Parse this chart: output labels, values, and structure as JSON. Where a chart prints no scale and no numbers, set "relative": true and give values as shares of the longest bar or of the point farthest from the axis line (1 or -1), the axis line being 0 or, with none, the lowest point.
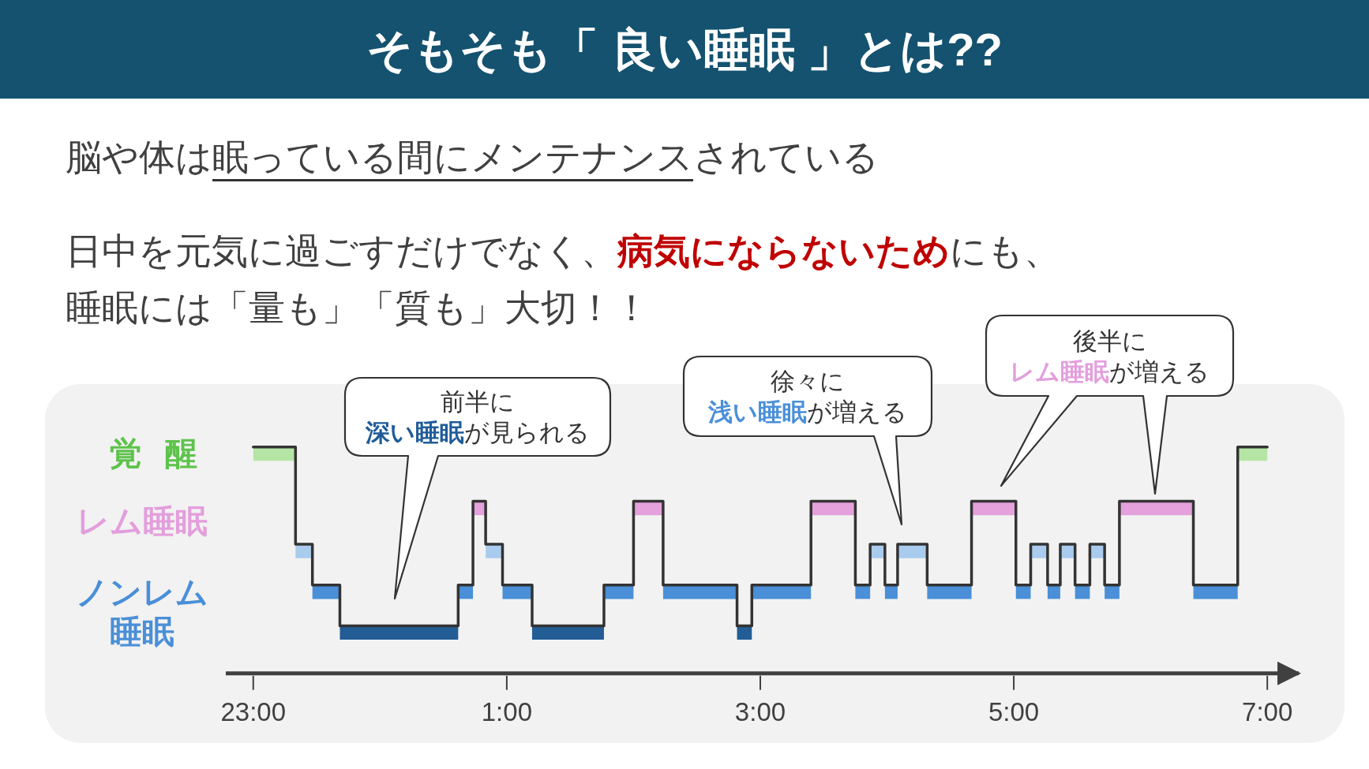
{
  "chart_data": {
    "type": "step",
    "relative": true,
    "title": "そもそも「 良い睡眠 」とは??",
    "subtitle": "脳や体は眠っている間にメンテナンスされている",
    "annotations": [
      "日中を元気に過ごすだけでなく、**病気にならないため**にも、睡眠には「量も」「質も」大切！！",
      "覚醒",
      "レム睡眠",
      "ノンレム睡眠",
      "前半に**深い睡眠**が見られる",
      "徐々に**浅い睡眠**が増える",
      "後半に**レム睡眠**が増える"
    ],
    "series": [
      {
        "type": "line",
        "color": "#b5e5a4",
        "x": [
          "2000-01-01T23:00",
          "2000-01-01T23:20"
        ],
        "values": [
          0.97,
          0.97
        ]
      },
      {
        "type": "line",
        "color": "#a9cbee",
        "x": [
          "2000-01-01T23:20",
          "2000-01-01T23:28"
        ],
        "values": [
          0.54,
          0.54
        ]
      },
      {
        "type": "line",
        "color": "#4a8fd8",
        "x": [
          "2000-01-01T23:28",
          "2000-01-01T23:41"
        ],
        "values": [
          0.36,
          0.36
        ]
      },
      {
        "type": "line",
        "color": "#235d96",
        "x": [
          "2000-01-01T23:41",
          "2000-01-02T00:37"
        ],
        "values": [
          0.18,
          0.18
        ]
      },
      {
        "type": "line",
        "color": "#4a8fd8",
        "x": [
          "2000-01-02T00:37",
          "2000-01-02T00:44"
        ],
        "values": [
          0.36,
          0.36
        ]
      },
      {
        "type": "line",
        "color": "#e4a1dc",
        "x": [
          "2000-01-02T00:44",
          "2000-01-02T00:50"
        ],
        "values": [
          0.73,
          0.73
        ]
      },
      {
        "type": "line",
        "color": "#a9cbee",
        "x": [
          "2000-01-02T00:50",
          "2000-01-02T00:58"
        ],
        "values": [
          0.54,
          0.54
        ]
      },
      {
        "type": "line",
        "color": "#4a8fd8",
        "x": [
          "2000-01-02T00:58",
          "2000-01-02T01:12"
        ],
        "values": [
          0.36,
          0.36
        ]
      },
      {
        "type": "line",
        "color": "#235d96",
        "x": [
          "2000-01-02T01:12",
          "2000-01-02T01:46"
        ],
        "values": [
          0.18,
          0.18
        ]
      },
      {
        "type": "line",
        "color": "#4a8fd8",
        "x": [
          "2000-01-02T01:46",
          "2000-01-02T02:00"
        ],
        "values": [
          0.36,
          0.36
        ]
      },
      {
        "type": "line",
        "color": "#e4a1dc",
        "x": [
          "2000-01-02T02:00",
          "2000-01-02T02:14"
        ],
        "values": [
          0.73,
          0.73
        ]
      },
      {
        "type": "line",
        "color": "#4a8fd8",
        "x": [
          "2000-01-02T02:14",
          "2000-01-02T02:49"
        ],
        "values": [
          0.36,
          0.36
        ]
      },
      {
        "type": "line",
        "color": "#235d96",
        "x": [
          "2000-01-02T02:49",
          "2000-01-02T02:56"
        ],
        "values": [
          0.18,
          0.18
        ]
      },
      {
        "type": "line",
        "color": "#4a8fd8",
        "x": [
          "2000-01-02T02:56",
          "2000-01-02T03:24"
        ],
        "values": [
          0.36,
          0.36
        ]
      },
      {
        "type": "line",
        "color": "#e4a1dc",
        "x": [
          "2000-01-02T03:24",
          "2000-01-02T03:45"
        ],
        "values": [
          0.73,
          0.73
        ]
      },
      {
        "type": "line",
        "color": "#4a8fd8",
        "x": [
          "2000-01-02T03:45",
          "2000-01-02T03:52"
        ],
        "values": [
          0.36,
          0.36
        ]
      },
      {
        "type": "line",
        "color": "#a9cbee",
        "x": [
          "2000-01-02T03:52",
          "2000-01-02T03:59"
        ],
        "values": [
          0.54,
          0.54
        ]
      },
      {
        "type": "line",
        "color": "#4a8fd8",
        "x": [
          "2000-01-02T03:59",
          "2000-01-02T04:05"
        ],
        "values": [
          0.36,
          0.36
        ]
      },
      {
        "type": "line",
        "color": "#a9cbee",
        "x": [
          "2000-01-02T04:05",
          "2000-01-02T04:19"
        ],
        "values": [
          0.54,
          0.54
        ]
      },
      {
        "type": "line",
        "color": "#4a8fd8",
        "x": [
          "2000-01-02T04:19",
          "2000-01-02T04:40"
        ],
        "values": [
          0.36,
          0.36
        ]
      },
      {
        "type": "line",
        "color": "#e4a1dc",
        "x": [
          "2000-01-02T04:40",
          "2000-01-02T05:01"
        ],
        "values": [
          0.73,
          0.73
        ]
      },
      {
        "type": "line",
        "color": "#4a8fd8",
        "x": [
          "2000-01-02T05:01",
          "2000-01-02T05:08"
        ],
        "values": [
          0.36,
          0.36
        ]
      },
      {
        "type": "line",
        "color": "#a9cbee",
        "x": [
          "2000-01-02T05:08",
          "2000-01-02T05:16"
        ],
        "values": [
          0.54,
          0.54
        ]
      },
      {
        "type": "line",
        "color": "#4a8fd8",
        "x": [
          "2000-01-02T05:16",
          "2000-01-02T05:22"
        ],
        "values": [
          0.36,
          0.36
        ]
      },
      {
        "type": "line",
        "color": "#a9cbee",
        "x": [
          "2000-01-02T05:22",
          "2000-01-02T05:29"
        ],
        "values": [
          0.54,
          0.54
        ]
      },
      {
        "type": "line",
        "color": "#4a8fd8",
        "x": [
          "2000-01-02T05:29",
          "2000-01-02T05:36"
        ],
        "values": [
          0.36,
          0.36
        ]
      },
      {
        "type": "line",
        "color": "#a9cbee",
        "x": [
          "2000-01-02T05:36",
          "2000-01-02T05:43"
        ],
        "values": [
          0.54,
          0.54
        ]
      },
      {
        "type": "line",
        "color": "#4a8fd8",
        "x": [
          "2000-01-02T05:43",
          "2000-01-02T05:50"
        ],
        "values": [
          0.36,
          0.36
        ]
      },
      {
        "type": "line",
        "color": "#e4a1dc",
        "x": [
          "2000-01-02T05:50",
          "2000-01-02T06:25"
        ],
        "values": [
          0.73,
          0.73
        ]
      },
      {
        "type": "line",
        "color": "#4a8fd8",
        "x": [
          "2000-01-02T06:25",
          "2000-01-02T06:46"
        ],
        "values": [
          0.36,
          0.36
        ]
      },
      {
        "type": "line",
        "color": "#b5e5a4",
        "x": [
          "2000-01-02T06:46",
          "2000-01-02T07:00"
        ],
        "values": [
          0.97,
          0.97
        ]
      },
      {
        "color": "#333333",
        "x": [
          "2000-01-01T23:00",
          "2000-01-01T23:20",
          "2000-01-01T23:28",
          "2000-01-01T23:41",
          "2000-01-02T00:37",
          "2000-01-02T00:44",
          "2000-01-02T00:50",
          "2000-01-02T00:58",
          "2000-01-02T01:12",
          "2000-01-02T01:46",
          "2000-01-02T02:00",
          "2000-01-02T02:14",
          "2000-01-02T02:49",
          "2000-01-02T02:56",
          "2000-01-02T03:24",
          "2000-01-02T03:45",
          "2000-01-02T03:52",
          "2000-01-02T03:59",
          "2000-01-02T04:05",
          "2000-01-02T04:19",
          "2000-01-02T04:40",
          "2000-01-02T05:01",
          "2000-01-02T05:08",
          "2000-01-02T05:16",
          "2000-01-02T05:22",
          "2000-01-02T05:29",
          "2000-01-02T05:36",
          "2000-01-02T05:43",
          "2000-01-02T05:50",
          "2000-01-02T06:25",
          "2000-01-02T06:46",
          "2000-01-02T07:00"
        ],
        "values": [
          1,
          0.57,
          0.39,
          0.21,
          0.39,
          0.76,
          0.57,
          0.39,
          0.21,
          0.39,
          0.76,
          0.39,
          0.21,
          0.39,
          0.76,
          0.39,
          0.57,
          0.39,
          0.57,
          0.39,
          0.76,
          0.39,
          0.57,
          0.39,
          0.57,
          0.39,
          0.57,
          0.39,
          0.76,
          0.39,
          1,
          1
        ]
      }
    ],
    "xlim": [
      "2000-01-01T22:47",
      "2000-01-02T07:16"
    ],
    "xticks": [
      {
        "value": "2000-01-01T23:00",
        "label": "23:00"
      },
      {
        "value": "2000-01-02T01:00",
        "label": "1:00"
      },
      {
        "value": "2000-01-02T03:00",
        "label": "3:00"
      },
      {
        "value": "2000-01-02T05:00",
        "label": "5:00"
      },
      {
        "value": "2000-01-02T07:00",
        "label": "7:00"
      }
    ]
  }
}
